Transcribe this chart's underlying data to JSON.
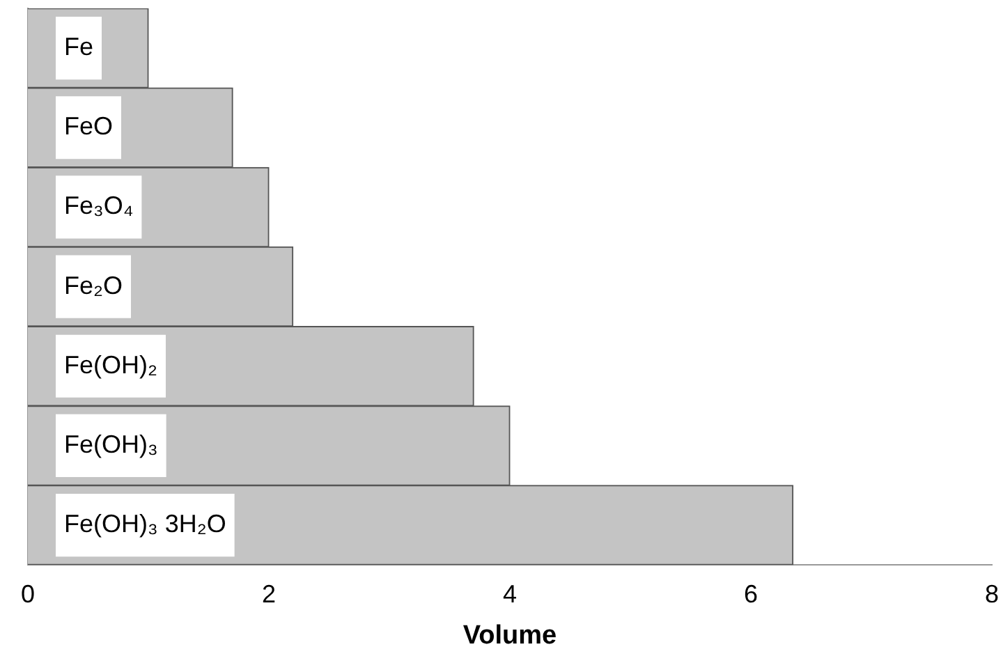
{
  "chart_data": {
    "type": "bar",
    "orientation": "horizontal",
    "categories": [
      "Fe",
      "FeO",
      "Fe₃O₄",
      "Fe₂O",
      "Fe(OH)₂",
      "Fe(OH)₃",
      "Fe(OH)₃ 3H₂O"
    ],
    "values": [
      1.0,
      1.7,
      2.0,
      2.2,
      3.7,
      4.0,
      6.35
    ],
    "color": "#c4c4c4",
    "xlabel": "Volume",
    "xlim": [
      0,
      8
    ],
    "xticks": [
      0,
      2,
      4,
      6,
      8
    ],
    "grid": false,
    "legend": false
  }
}
